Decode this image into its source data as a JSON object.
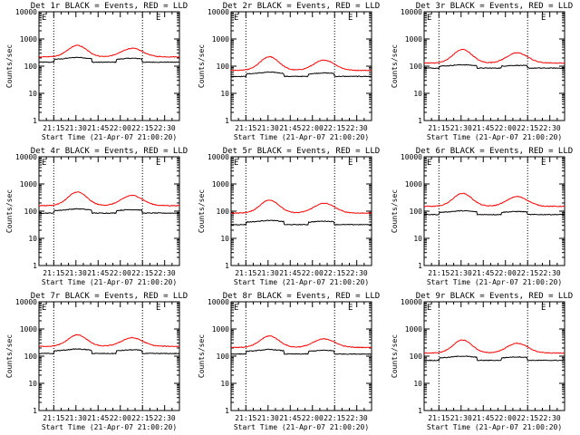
{
  "chart_data": [
    {
      "type": "line",
      "title": "Det 1r BLACK = Events, RED = LLD",
      "xlabel": "Start Time (21-Apr-07 21:00:20)",
      "ylabel": "Counts/sec",
      "yscale": "log",
      "ylim": [
        1,
        10000
      ],
      "yticks": [
        "1",
        "10",
        "100",
        "1000",
        "10000"
      ],
      "xticks": [
        "21:15",
        "21:30",
        "21:45",
        "22:00",
        "22:15",
        "22:30"
      ],
      "xlim_min": [
        5,
        100
      ],
      "dotted_lines_min": [
        15,
        75
      ],
      "legend_marker": "E",
      "series": [
        {
          "name": "Events",
          "color": "#000000",
          "shape": "flat",
          "base": 140,
          "amp": 0.32
        },
        {
          "name": "LLD",
          "color": "#ff0000",
          "shape": "peaked",
          "base": 220,
          "amp": 0.42
        }
      ]
    },
    {
      "type": "line",
      "title": "Det 2r BLACK = Events, RED = LLD",
      "xlabel": "Start Time (21-Apr-07 21:00:20)",
      "ylabel": "Counts/sec",
      "yscale": "log",
      "ylim": [
        1,
        10000
      ],
      "yticks": [
        "1",
        "10",
        "100",
        "1000",
        "10000"
      ],
      "xticks": [
        "21:15",
        "21:30",
        "21:45",
        "22:00",
        "22:15",
        "22:30"
      ],
      "xlim_min": [
        5,
        100
      ],
      "dotted_lines_min": [
        15,
        75
      ],
      "legend_marker": "E",
      "series": [
        {
          "name": "Events",
          "color": "#000000",
          "shape": "flat",
          "base": 42,
          "amp": 0.28
        },
        {
          "name": "LLD",
          "color": "#ff0000",
          "shape": "peaked",
          "base": 70,
          "amp": 0.5
        }
      ]
    },
    {
      "type": "line",
      "title": "Det 3r BLACK = Events, RED = LLD",
      "xlabel": "Start Time (21-Apr-07 21:00:20)",
      "ylabel": "Counts/sec",
      "yscale": "log",
      "ylim": [
        1,
        10000
      ],
      "yticks": [
        "1",
        "10",
        "100",
        "1000",
        "10000"
      ],
      "xticks": [
        "21:15",
        "21:30",
        "21:45",
        "22:00",
        "22:15",
        "22:30"
      ],
      "xlim_min": [
        5,
        100
      ],
      "dotted_lines_min": [
        15,
        75
      ],
      "legend_marker": "E",
      "series": [
        {
          "name": "Events",
          "color": "#000000",
          "shape": "flat",
          "base": 85,
          "amp": 0.22
        },
        {
          "name": "LLD",
          "color": "#ff0000",
          "shape": "peaked",
          "base": 130,
          "amp": 0.5
        }
      ]
    },
    {
      "type": "line",
      "title": "Det 4r BLACK = Events, RED = LLD",
      "xlabel": "Start Time (21-Apr-07 21:00:20)",
      "ylabel": "Counts/sec",
      "yscale": "log",
      "ylim": [
        1,
        10000
      ],
      "yticks": [
        "1",
        "10",
        "100",
        "1000",
        "10000"
      ],
      "xticks": [
        "21:15",
        "21:30",
        "21:45",
        "22:00",
        "22:15",
        "22:30"
      ],
      "xlim_min": [
        5,
        100
      ],
      "dotted_lines_min": [
        15,
        75
      ],
      "legend_marker": "E",
      "series": [
        {
          "name": "Events",
          "color": "#000000",
          "shape": "flat",
          "base": 85,
          "amp": 0.28
        },
        {
          "name": "LLD",
          "color": "#ff0000",
          "shape": "peaked",
          "base": 160,
          "amp": 0.5
        }
      ]
    },
    {
      "type": "line",
      "title": "Det 5r BLACK = Events, RED = LLD",
      "xlabel": "Start Time (21-Apr-07 21:00:20)",
      "ylabel": "Counts/sec",
      "yscale": "log",
      "ylim": [
        1,
        10000
      ],
      "yticks": [
        "1",
        "10",
        "100",
        "1000",
        "10000"
      ],
      "xticks": [
        "21:15",
        "21:30",
        "21:45",
        "22:00",
        "22:15",
        "22:30"
      ],
      "xlim_min": [
        5,
        100
      ],
      "dotted_lines_min": [
        15,
        75
      ],
      "legend_marker": "E",
      "series": [
        {
          "name": "Events",
          "color": "#000000",
          "shape": "flat",
          "base": 32,
          "amp": 0.28
        },
        {
          "name": "LLD",
          "color": "#ff0000",
          "shape": "peaked",
          "base": 85,
          "amp": 0.48
        }
      ]
    },
    {
      "type": "line",
      "title": "Det 6r BLACK = Events, RED = LLD",
      "xlabel": "Start Time (21-Apr-07 21:00:20)",
      "ylabel": "Counts/sec",
      "yscale": "log",
      "ylim": [
        1,
        10000
      ],
      "yticks": [
        "1",
        "10",
        "100",
        "1000",
        "10000"
      ],
      "xticks": [
        "21:15",
        "21:30",
        "21:45",
        "22:00",
        "22:15",
        "22:30"
      ],
      "xlim_min": [
        5,
        100
      ],
      "dotted_lines_min": [
        15,
        75
      ],
      "legend_marker": "E",
      "series": [
        {
          "name": "Events",
          "color": "#000000",
          "shape": "flat",
          "base": 75,
          "amp": 0.25
        },
        {
          "name": "LLD",
          "color": "#ff0000",
          "shape": "peaked",
          "base": 150,
          "amp": 0.48
        }
      ]
    },
    {
      "type": "line",
      "title": "Det 7r BLACK = Events, RED = LLD",
      "xlabel": "Start Time (21-Apr-07 21:00:20)",
      "ylabel": "Counts/sec",
      "yscale": "log",
      "ylim": [
        1,
        10000
      ],
      "yticks": [
        "1",
        "10",
        "100",
        "1000",
        "10000"
      ],
      "xticks": [
        "21:15",
        "21:30",
        "21:45",
        "22:00",
        "22:15",
        "22:30"
      ],
      "xlim_min": [
        5,
        100
      ],
      "dotted_lines_min": [
        15,
        75
      ],
      "legend_marker": "E",
      "series": [
        {
          "name": "Events",
          "color": "#000000",
          "shape": "flat",
          "base": 125,
          "amp": 0.3
        },
        {
          "name": "LLD",
          "color": "#ff0000",
          "shape": "peaked",
          "base": 230,
          "amp": 0.42
        }
      ]
    },
    {
      "type": "line",
      "title": "Det 8r BLACK = Events, RED = LLD",
      "xlabel": "Start Time (21-Apr-07 21:00:20)",
      "ylabel": "Counts/sec",
      "yscale": "log",
      "ylim": [
        1,
        10000
      ],
      "yticks": [
        "1",
        "10",
        "100",
        "1000",
        "10000"
      ],
      "xticks": [
        "21:15",
        "21:30",
        "21:45",
        "22:00",
        "22:15",
        "22:30"
      ],
      "xlim_min": [
        5,
        100
      ],
      "dotted_lines_min": [
        15,
        75
      ],
      "legend_marker": "E",
      "series": [
        {
          "name": "Events",
          "color": "#000000",
          "shape": "flat",
          "base": 120,
          "amp": 0.3
        },
        {
          "name": "LLD",
          "color": "#ff0000",
          "shape": "peaked",
          "base": 210,
          "amp": 0.42
        }
      ]
    },
    {
      "type": "line",
      "title": "Det 9r BLACK = Events, RED = LLD",
      "xlabel": "Start Time (21-Apr-07 21:00:20)",
      "ylabel": "Counts/sec",
      "yscale": "log",
      "ylim": [
        1,
        10000
      ],
      "yticks": [
        "1",
        "10",
        "100",
        "1000",
        "10000"
      ],
      "xticks": [
        "21:15",
        "21:30",
        "21:45",
        "22:00",
        "22:15",
        "22:30"
      ],
      "xlim_min": [
        5,
        100
      ],
      "dotted_lines_min": [
        15,
        75
      ],
      "legend_marker": "E",
      "series": [
        {
          "name": "Events",
          "color": "#000000",
          "shape": "flat",
          "base": 70,
          "amp": 0.28
        },
        {
          "name": "LLD",
          "color": "#ff0000",
          "shape": "peaked",
          "base": 130,
          "amp": 0.48
        }
      ]
    }
  ]
}
